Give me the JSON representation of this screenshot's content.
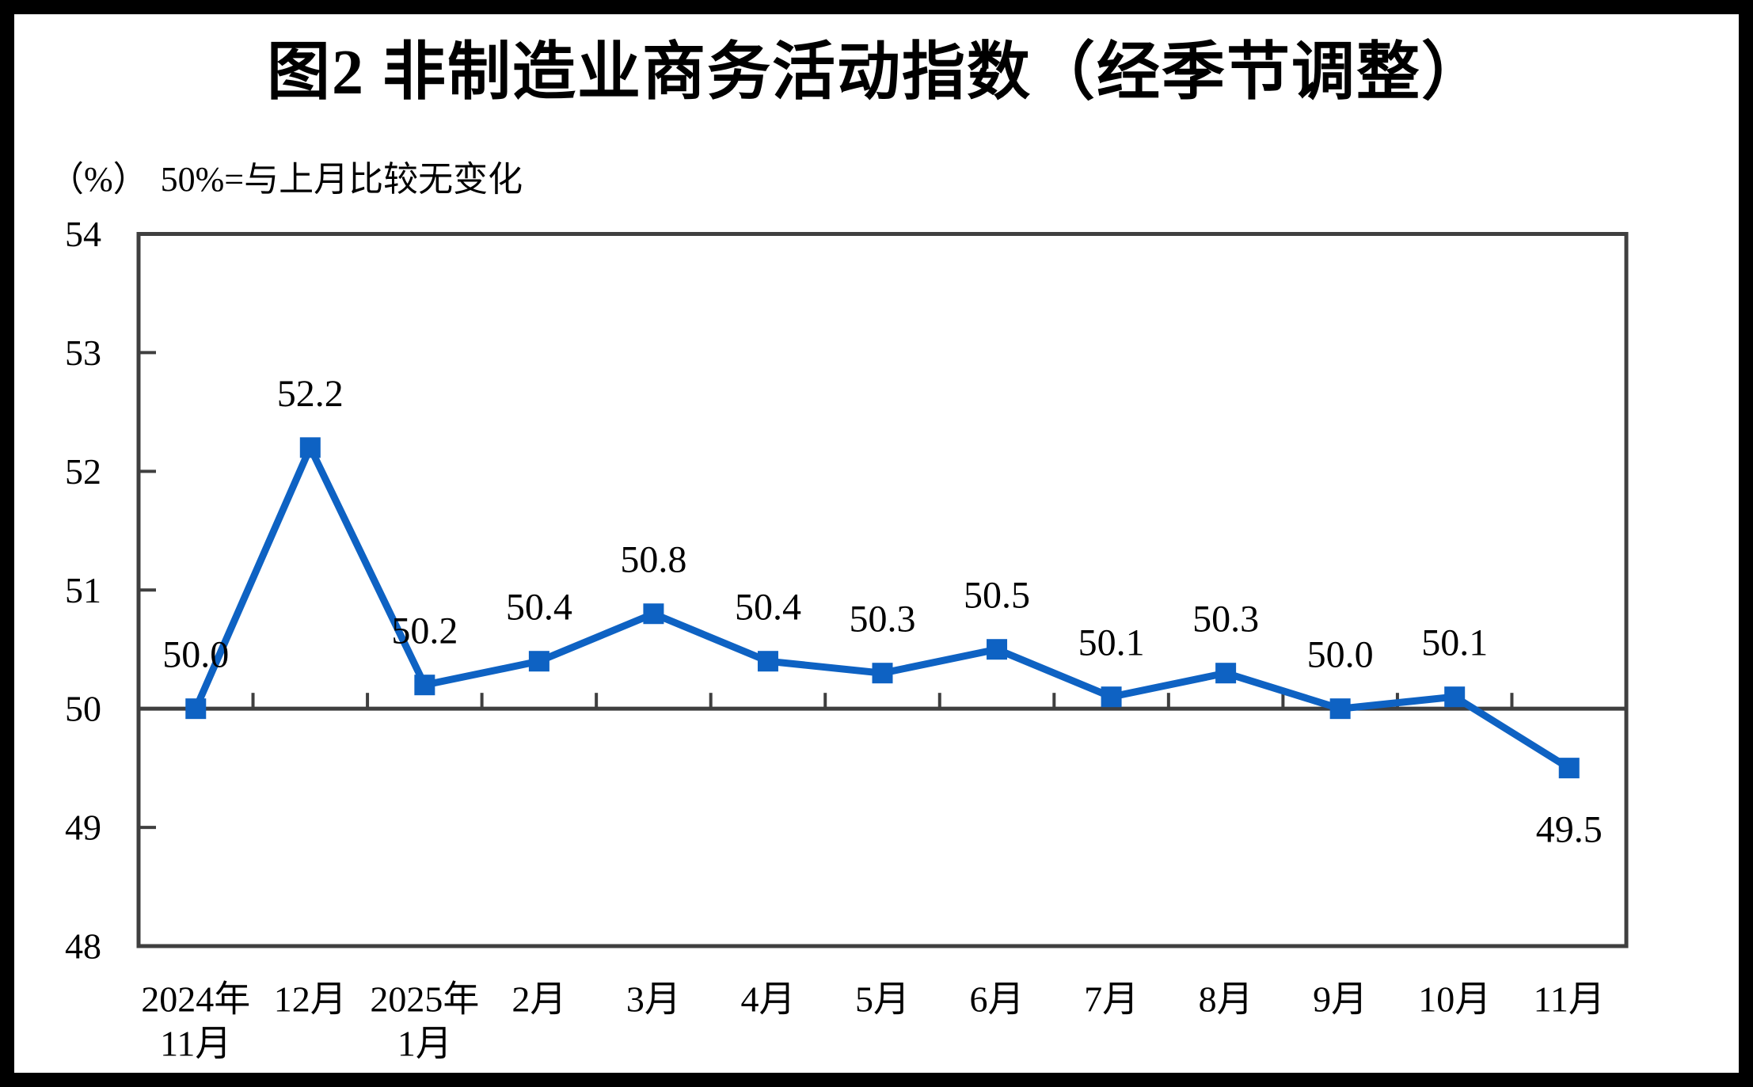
{
  "page": {
    "title": "图2 非制造业商务活动指数（经季节调整）",
    "unit_label": "（%）",
    "reference_note": "50%=与上月比较无变化"
  },
  "chart_data": {
    "type": "line",
    "title": "图2 非制造业商务活动指数（经季节调整）",
    "unit": "%",
    "annotation": "50%=与上月比较无变化",
    "categories": [
      [
        "2024年",
        "11月"
      ],
      [
        "12月"
      ],
      [
        "2025年",
        "1月"
      ],
      [
        "2月"
      ],
      [
        "3月"
      ],
      [
        "4月"
      ],
      [
        "5月"
      ],
      [
        "6月"
      ],
      [
        "7月"
      ],
      [
        "8月"
      ],
      [
        "9月"
      ],
      [
        "10月"
      ],
      [
        "11月"
      ]
    ],
    "values": [
      50.0,
      52.2,
      50.2,
      50.4,
      50.8,
      50.4,
      50.3,
      50.5,
      50.1,
      50.3,
      50.0,
      50.1,
      49.5
    ],
    "data_labels": [
      "50.0",
      "52.2",
      "50.2",
      "50.4",
      "50.8",
      "50.4",
      "50.3",
      "50.5",
      "50.1",
      "50.3",
      "50.0",
      "50.1",
      "49.5"
    ],
    "ylim": [
      48,
      54
    ],
    "yticks": [
      48,
      49,
      50,
      51,
      52,
      53,
      54
    ],
    "baseline": 50,
    "line_color": "#0e62c3",
    "axis_color": "#3f3f3f",
    "marker": "square",
    "legend": "none",
    "grid": "off"
  }
}
